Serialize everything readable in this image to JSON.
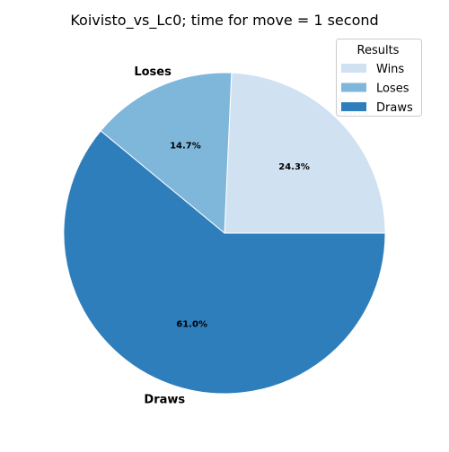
{
  "chart_data": {
    "type": "pie",
    "title": "Koivisto_vs_Lc0; time for move = 1 second",
    "start_angle_deg": 0,
    "direction": "counterclockwise",
    "slices": [
      {
        "label": "Wins",
        "value": 24.3,
        "pct_label": "24.3%",
        "color": "#d0e1f2"
      },
      {
        "label": "Loses",
        "value": 14.7,
        "pct_label": "14.7%",
        "color": "#7fb7da"
      },
      {
        "label": "Draws",
        "value": 61.0,
        "pct_label": "61.0%",
        "color": "#2e7ebc"
      }
    ],
    "legend": {
      "title": "Results",
      "placement": "top-right",
      "entries": [
        "Wins",
        "Loses",
        "Draws"
      ]
    }
  }
}
